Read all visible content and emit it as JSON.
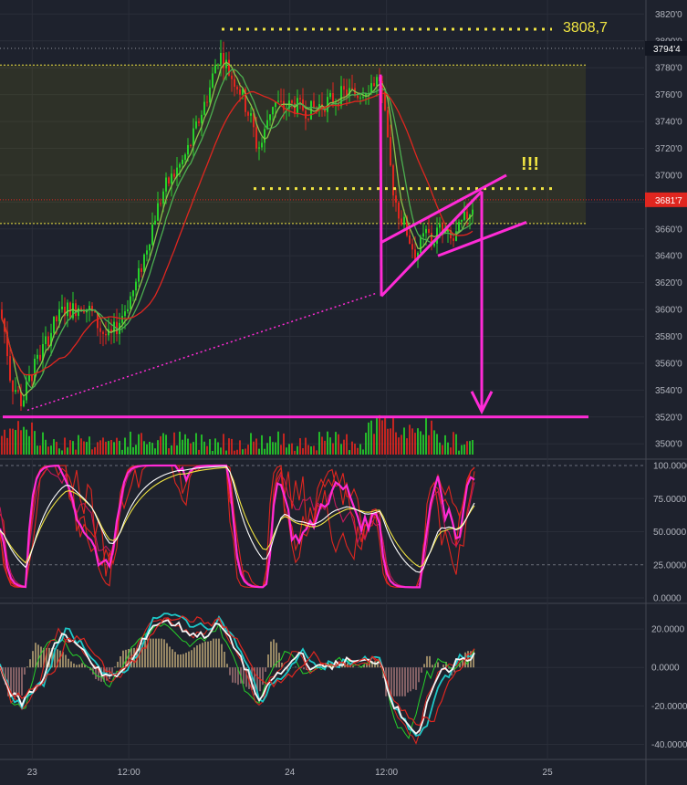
{
  "colors": {
    "background": "#1e222d",
    "grid": "#2a2e39",
    "axis_text": "#b2b5be",
    "bull": "#26d12a",
    "bear": "#e0261f",
    "annotation": "#ff2bd6",
    "dotted": "#f0e442",
    "price_tag": "#e0261f",
    "zone": "rgba(120,120,20,0.18)"
  },
  "chart_data": {
    "type": "candlestick",
    "price_panel": {
      "y_ticks": [
        "3820'0",
        "3800'0",
        "3780'0",
        "3760'0",
        "3740'0",
        "3720'0",
        "3700'0",
        "3680'0",
        "3660'0",
        "3640'0",
        "3620'0",
        "3600'0",
        "3580'0",
        "3560'0",
        "3540'0",
        "3520'0",
        "3500'0"
      ],
      "ylim": [
        3492,
        3825
      ],
      "current_price": "3681'7",
      "top_price": "3794'4",
      "annotations": {
        "high_level": "3808,7",
        "exclamation": "!!!",
        "target_level": 3520,
        "breakout_level": 3690,
        "zone": [
          3664,
          3782
        ]
      },
      "close_path": [
        [
          0,
          3600
        ],
        [
          6,
          3580
        ],
        [
          12,
          3545
        ],
        [
          18,
          3540
        ],
        [
          24,
          3530
        ],
        [
          32,
          3548
        ],
        [
          40,
          3560
        ],
        [
          50,
          3575
        ],
        [
          60,
          3590
        ],
        [
          70,
          3600
        ],
        [
          80,
          3600
        ],
        [
          90,
          3605
        ],
        [
          100,
          3598
        ],
        [
          110,
          3585
        ],
        [
          120,
          3578
        ],
        [
          130,
          3590
        ],
        [
          140,
          3605
        ],
        [
          150,
          3620
        ],
        [
          160,
          3645
        ],
        [
          170,
          3670
        ],
        [
          180,
          3690
        ],
        [
          190,
          3700
        ],
        [
          200,
          3710
        ],
        [
          210,
          3725
        ],
        [
          220,
          3745
        ],
        [
          230,
          3765
        ],
        [
          236,
          3782
        ],
        [
          240,
          3790
        ],
        [
          246,
          3786
        ],
        [
          252,
          3775
        ],
        [
          258,
          3770
        ],
        [
          264,
          3762
        ],
        [
          270,
          3750
        ],
        [
          276,
          3740
        ],
        [
          282,
          3720
        ],
        [
          288,
          3725
        ],
        [
          294,
          3745
        ],
        [
          300,
          3755
        ],
        [
          310,
          3750
        ],
        [
          320,
          3752
        ],
        [
          330,
          3750
        ],
        [
          340,
          3748
        ],
        [
          350,
          3752
        ],
        [
          360,
          3755
        ],
        [
          370,
          3758
        ],
        [
          380,
          3762
        ],
        [
          390,
          3760
        ],
        [
          400,
          3765
        ],
        [
          410,
          3770
        ],
        [
          416,
          3772
        ],
        [
          420,
          3755
        ],
        [
          426,
          3715
        ],
        [
          432,
          3685
        ],
        [
          438,
          3670
        ],
        [
          444,
          3662
        ],
        [
          450,
          3650
        ],
        [
          456,
          3640
        ],
        [
          462,
          3650
        ],
        [
          468,
          3658
        ],
        [
          474,
          3648
        ],
        [
          480,
          3660
        ],
        [
          488,
          3655
        ],
        [
          496,
          3650
        ],
        [
          504,
          3660
        ],
        [
          510,
          3668
        ],
        [
          516,
          3675
        ],
        [
          520,
          3681
        ]
      ]
    },
    "volume_panel": {
      "ylim": [
        0,
        1
      ]
    },
    "oscillator_panel": {
      "y_ticks": [
        "100.0000",
        "75.0000",
        "50.0000",
        "25.0000",
        "0.0000"
      ],
      "ylim": [
        0,
        100
      ]
    },
    "momentum_panel": {
      "y_ticks": [
        "20.0000",
        "0.0000",
        "-20.0000",
        "-40.0000"
      ],
      "ylim": [
        -45,
        30
      ]
    },
    "x_axis": {
      "ticks": [
        {
          "label": "23",
          "x": 3
        },
        {
          "label": "12:00",
          "x": 12
        },
        {
          "label": "24",
          "x": 27
        },
        {
          "label": "12:00",
          "x": 36
        },
        {
          "label": "25",
          "x": 51
        }
      ],
      "xlim": [
        0,
        60
      ]
    }
  }
}
